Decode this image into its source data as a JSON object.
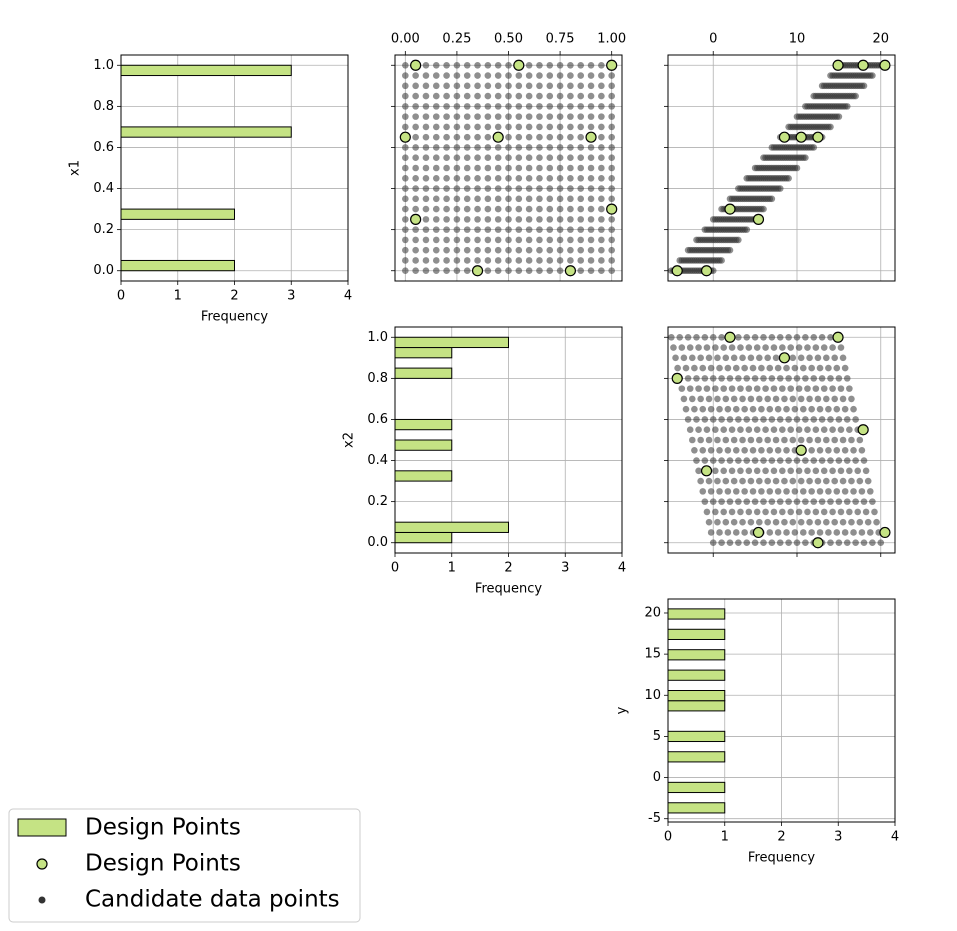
{
  "chart_data": {
    "type": "pairplot",
    "variables": [
      "x1",
      "x2",
      "y"
    ],
    "xlabel": "Frequency",
    "freq_lim": [
      0,
      4
    ],
    "freq_ticks": [
      0,
      1,
      2,
      3,
      4
    ],
    "unit_lim": [
      -0.05,
      1.05
    ],
    "unit_ticks": [
      {
        "value": 0,
        "label": "0.0"
      },
      0.2,
      0.4,
      0.6,
      0.8,
      {
        "value": 1,
        "label": "1.0"
      }
    ],
    "unit_top_ticks": [
      {
        "value": 0,
        "label": "0.00"
      },
      0.25,
      {
        "value": 0.5,
        "label": "0.50"
      },
      0.75,
      {
        "value": 1,
        "label": "1.00"
      }
    ],
    "y_lim": [
      -5.4,
      21.7
    ],
    "y_ticks": [
      -5,
      0,
      5,
      10,
      15,
      20
    ],
    "y_top_ticks": [
      0,
      10,
      20
    ],
    "grid": true,
    "legend_position": "lower left",
    "series": [
      {
        "name": "Design Points",
        "color": "#c5e384",
        "marker": "patch"
      },
      {
        "name": "Design Points",
        "color": "#c5e384",
        "marker": "circle"
      },
      {
        "name": "Candidate data points",
        "color": "#333333",
        "marker": "dot"
      }
    ],
    "design": {
      "x1": [
        1.0,
        1.0,
        1.0,
        0.65,
        0.65,
        0.65,
        0.3,
        0.25,
        0.0,
        0.0
      ],
      "x2": [
        1.0,
        0.55,
        0.05,
        0.9,
        0.45,
        0.0,
        1.0,
        0.05,
        0.8,
        0.35
      ],
      "y": [
        14.9,
        17.9,
        20.5,
        8.5,
        10.5,
        12.5,
        2.0,
        5.4,
        -4.3,
        -0.8
      ]
    },
    "candidates": {
      "x1": [
        0,
        0.05,
        0.1,
        0.15,
        0.2,
        0.25,
        0.3,
        0.35,
        0.4,
        0.45,
        0.5,
        0.55,
        0.6,
        0.65,
        0.7,
        0.75,
        0.8,
        0.85,
        0.9,
        0.95,
        1
      ],
      "x2": [
        0,
        0.05,
        0.1,
        0.15,
        0.2,
        0.25,
        0.3,
        0.35,
        0.4,
        0.45,
        0.5,
        0.55,
        0.6,
        0.65,
        0.7,
        0.75,
        0.8,
        0.85,
        0.9,
        0.95,
        1
      ],
      "y": [
        [
          0,
          -0.25,
          -0.5,
          -0.75,
          -1,
          -1.25,
          -1.5,
          -1.75,
          -2,
          -2.25,
          -2.5,
          -2.75,
          -3,
          -3.25,
          -3.5,
          -3.75,
          -4,
          -4.25,
          -4.5,
          -4.75,
          -5
        ],
        [
          1,
          0.75,
          0.5,
          0.25,
          0,
          -0.25,
          -0.5,
          -0.75,
          -1,
          -1.25,
          -1.5,
          -1.75,
          -2,
          -2.25,
          -2.5,
          -2.75,
          -3,
          -3.25,
          -3.5,
          -3.75,
          -4
        ],
        [
          2,
          1.75,
          1.5,
          1.25,
          1,
          0.75,
          0.5,
          0.25,
          0,
          -0.25,
          -0.5,
          -0.75,
          -1,
          -1.25,
          -1.5,
          -1.75,
          -2,
          -2.25,
          -2.5,
          -2.75,
          -3
        ],
        [
          3,
          2.75,
          2.5,
          2.25,
          2,
          1.75,
          1.5,
          1.25,
          1,
          0.75,
          0.5,
          0.25,
          0,
          -0.25,
          -0.5,
          -0.75,
          -1,
          -1.25,
          -1.5,
          -1.75,
          -2
        ],
        [
          4,
          3.75,
          3.5,
          3.25,
          3,
          2.75,
          2.5,
          2.25,
          2,
          1.75,
          1.5,
          1.25,
          1,
          0.75,
          0.5,
          0.25,
          0,
          -0.25,
          -0.5,
          -0.75,
          -1
        ],
        [
          5,
          4.75,
          4.5,
          4.25,
          4,
          3.75,
          3.5,
          3.25,
          3,
          2.75,
          2.5,
          2.25,
          2,
          1.75,
          1.5,
          1.25,
          1,
          0.75,
          0.5,
          0.25,
          0
        ],
        [
          6,
          5.75,
          5.5,
          5.25,
          5,
          4.75,
          4.5,
          4.25,
          4,
          3.75,
          3.5,
          3.25,
          3,
          2.75,
          2.5,
          2.25,
          2,
          1.75,
          1.5,
          1.25,
          1
        ],
        [
          7,
          6.75,
          6.5,
          6.25,
          6,
          5.75,
          5.5,
          5.25,
          5,
          4.75,
          4.5,
          4.25,
          4,
          3.75,
          3.5,
          3.25,
          3,
          2.75,
          2.5,
          2.25,
          2
        ],
        [
          8,
          7.75,
          7.5,
          7.25,
          7,
          6.75,
          6.5,
          6.25,
          6,
          5.75,
          5.5,
          5.25,
          5,
          4.75,
          4.5,
          4.25,
          4,
          3.75,
          3.5,
          3.25,
          3
        ],
        [
          9,
          8.75,
          8.5,
          8.25,
          8,
          7.75,
          7.5,
          7.25,
          7,
          6.75,
          6.5,
          6.25,
          6,
          5.75,
          5.5,
          5.25,
          5,
          4.75,
          4.5,
          4.25,
          4
        ],
        [
          10,
          9.75,
          9.5,
          9.25,
          9,
          8.75,
          8.5,
          8.25,
          8,
          7.75,
          7.5,
          7.25,
          7,
          6.75,
          6.5,
          6.25,
          6,
          5.75,
          5.5,
          5.25,
          5
        ],
        [
          11,
          10.75,
          10.5,
          10.25,
          10,
          9.75,
          9.5,
          9.25,
          9,
          8.75,
          8.5,
          8.25,
          8,
          7.75,
          7.5,
          7.25,
          7,
          6.75,
          6.5,
          6.25,
          6
        ],
        [
          12,
          11.75,
          11.5,
          11.25,
          11,
          10.75,
          10.5,
          10.25,
          10,
          9.75,
          9.5,
          9.25,
          9,
          8.75,
          8.5,
          8.25,
          8,
          7.75,
          7.5,
          7.25,
          7
        ],
        [
          13,
          12.75,
          12.5,
          12.25,
          12,
          11.75,
          11.5,
          11.25,
          11,
          10.75,
          10.5,
          10.25,
          10,
          9.75,
          9.5,
          9.25,
          9,
          8.75,
          8.5,
          8.25,
          8
        ],
        [
          14,
          13.75,
          13.5,
          13.25,
          13,
          12.75,
          12.5,
          12.25,
          12,
          11.75,
          11.5,
          11.25,
          11,
          10.75,
          10.5,
          10.25,
          10,
          9.75,
          9.5,
          9.25,
          9
        ],
        [
          15,
          14.75,
          14.5,
          14.25,
          14,
          13.75,
          13.5,
          13.25,
          13,
          12.75,
          12.5,
          12.25,
          12,
          11.75,
          11.5,
          11.25,
          11,
          10.75,
          10.5,
          10.25,
          10
        ],
        [
          16,
          15.75,
          15.5,
          15.25,
          15,
          14.75,
          14.5,
          14.25,
          14,
          13.75,
          13.5,
          13.25,
          13,
          12.75,
          12.5,
          12.25,
          12,
          11.75,
          11.5,
          11.25,
          11
        ],
        [
          17,
          16.75,
          16.5,
          16.25,
          16,
          15.75,
          15.5,
          15.25,
          15,
          14.75,
          14.5,
          14.25,
          14,
          13.75,
          13.5,
          13.25,
          13,
          12.75,
          12.5,
          12.25,
          12
        ],
        [
          18,
          17.75,
          17.5,
          17.25,
          17,
          16.75,
          16.5,
          16.25,
          16,
          15.75,
          15.5,
          15.25,
          15,
          14.75,
          14.5,
          14.25,
          14,
          13.75,
          13.5,
          13.25,
          13
        ],
        [
          19,
          18.75,
          18.5,
          18.25,
          18,
          17.75,
          17.5,
          17.25,
          17,
          16.75,
          16.5,
          16.25,
          16,
          15.75,
          15.5,
          15.25,
          15,
          14.75,
          14.5,
          14.25,
          14
        ],
        [
          20,
          19.75,
          19.5,
          19.25,
          19,
          18.75,
          18.5,
          18.25,
          18,
          17.75,
          17.5,
          17.25,
          17,
          16.75,
          16.5,
          16.25,
          16,
          15.75,
          15.5,
          15.25,
          15
        ]
      ]
    },
    "histograms": [
      {
        "bins": [
          0,
          0.05,
          0.1,
          0.15,
          0.2,
          0.25,
          0.3,
          0.35,
          0.4,
          0.45,
          0.5,
          0.55,
          0.6,
          0.65,
          0.7,
          0.75,
          0.8,
          0.85,
          0.9,
          0.95,
          1
        ],
        "counts": [
          2,
          0,
          0,
          0,
          0,
          2,
          0,
          0,
          0,
          0,
          0,
          0,
          0,
          3,
          0,
          0,
          0,
          0,
          0,
          3
        ]
      },
      {
        "bins": [
          0,
          0.05,
          0.1,
          0.15,
          0.2,
          0.25,
          0.3,
          0.35,
          0.4,
          0.45,
          0.5,
          0.55,
          0.6,
          0.65,
          0.7,
          0.75,
          0.8,
          0.85,
          0.9,
          0.95,
          1
        ],
        "counts": [
          1,
          2,
          0,
          0,
          0,
          0,
          1,
          0,
          0,
          1,
          0,
          1,
          0,
          0,
          0,
          0,
          1,
          0,
          1,
          2
        ]
      },
      {
        "bins": [
          -4.3,
          -3.06,
          -1.82,
          -0.58,
          0.66,
          1.9,
          3.14,
          4.38,
          5.62,
          6.86,
          8.1,
          9.34,
          10.58,
          11.82,
          13.06,
          14.3,
          15.54,
          16.78,
          18.02,
          19.26,
          20.5
        ],
        "counts": [
          1,
          0,
          1,
          0,
          0,
          1,
          0,
          1,
          0,
          0,
          1,
          1,
          0,
          1,
          0,
          1,
          0,
          1,
          0,
          1
        ]
      }
    ]
  }
}
